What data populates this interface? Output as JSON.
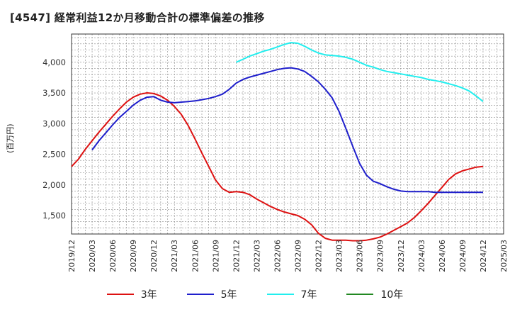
{
  "chart_data": {
    "type": "line",
    "title": "[4547]  経常利益12か月移動合計の標準偏差の推移",
    "ylabel": "(百万円)",
    "xlabel": "",
    "ylim": [
      1200,
      4460
    ],
    "yticks": [
      1500,
      2000,
      2500,
      3000,
      3500,
      4000
    ],
    "ytick_labels": [
      "1,500",
      "2,000",
      "2,500",
      "3,000",
      "3,500",
      "4,000"
    ],
    "x_tick_labels": [
      "2019/12",
      "2020/03",
      "2020/06",
      "2020/09",
      "2020/12",
      "2021/03",
      "2021/06",
      "2021/09",
      "2021/12",
      "2022/03",
      "2022/06",
      "2022/09",
      "2022/12",
      "2023/03",
      "2023/06",
      "2023/09",
      "2023/12",
      "2024/03",
      "2024/06",
      "2024/09",
      "2024/12",
      "2025/03"
    ],
    "grid": true,
    "legend_position": "bottom",
    "series": [
      {
        "name": "3年",
        "color": "#dd1111",
        "x": [
          "2019/12",
          "2020/01",
          "2020/02",
          "2020/03",
          "2020/04",
          "2020/05",
          "2020/06",
          "2020/07",
          "2020/08",
          "2020/09",
          "2020/10",
          "2020/11",
          "2020/12",
          "2021/01",
          "2021/02",
          "2021/03",
          "2021/04",
          "2021/05",
          "2021/06",
          "2021/07",
          "2021/08",
          "2021/09",
          "2021/10",
          "2021/11",
          "2021/12",
          "2022/01",
          "2022/02",
          "2022/03",
          "2022/04",
          "2022/05",
          "2022/06",
          "2022/07",
          "2022/08",
          "2022/09",
          "2022/10",
          "2022/11",
          "2022/12",
          "2023/01",
          "2023/02",
          "2023/03",
          "2023/04",
          "2023/05",
          "2023/06",
          "2023/07",
          "2023/08",
          "2023/09",
          "2023/10",
          "2023/11",
          "2023/12",
          "2024/01",
          "2024/02",
          "2024/03",
          "2024/04",
          "2024/05",
          "2024/06",
          "2024/07",
          "2024/08",
          "2024/09",
          "2024/10",
          "2024/11",
          "2024/12"
        ],
        "values": [
          2300,
          2420,
          2580,
          2720,
          2860,
          2990,
          3120,
          3240,
          3350,
          3430,
          3480,
          3500,
          3490,
          3450,
          3380,
          3280,
          3150,
          2970,
          2750,
          2520,
          2300,
          2080,
          1940,
          1880,
          1890,
          1880,
          1840,
          1770,
          1710,
          1650,
          1600,
          1560,
          1530,
          1500,
          1440,
          1350,
          1210,
          1130,
          1100,
          1100,
          1100,
          1090,
          1090,
          1100,
          1120,
          1150,
          1200,
          1260,
          1320,
          1380,
          1470,
          1580,
          1700,
          1830,
          1960,
          2090,
          2180,
          2230,
          2260,
          2290,
          2300
        ]
      },
      {
        "name": "5年",
        "color": "#1f1fcc",
        "x": [
          "2020/03",
          "2020/04",
          "2020/05",
          "2020/06",
          "2020/07",
          "2020/08",
          "2020/09",
          "2020/10",
          "2020/11",
          "2020/12",
          "2021/01",
          "2021/02",
          "2021/03",
          "2021/04",
          "2021/05",
          "2021/06",
          "2021/07",
          "2021/08",
          "2021/09",
          "2021/10",
          "2021/11",
          "2021/12",
          "2022/01",
          "2022/02",
          "2022/03",
          "2022/04",
          "2022/05",
          "2022/06",
          "2022/07",
          "2022/08",
          "2022/09",
          "2022/10",
          "2022/11",
          "2022/12",
          "2023/01",
          "2023/02",
          "2023/03",
          "2023/04",
          "2023/05",
          "2023/06",
          "2023/07",
          "2023/08",
          "2023/09",
          "2023/10",
          "2023/11",
          "2023/12",
          "2024/01",
          "2024/02",
          "2024/03",
          "2024/04",
          "2024/05",
          "2024/06",
          "2024/07",
          "2024/08",
          "2024/09",
          "2024/10",
          "2024/11",
          "2024/12"
        ],
        "values": [
          2570,
          2720,
          2850,
          2980,
          3100,
          3200,
          3300,
          3380,
          3430,
          3440,
          3380,
          3350,
          3340,
          3350,
          3360,
          3370,
          3390,
          3410,
          3440,
          3480,
          3560,
          3660,
          3720,
          3760,
          3790,
          3820,
          3850,
          3880,
          3900,
          3910,
          3890,
          3850,
          3770,
          3680,
          3560,
          3420,
          3200,
          2920,
          2630,
          2350,
          2160,
          2060,
          2020,
          1970,
          1930,
          1900,
          1890,
          1890,
          1890,
          1890,
          1880,
          1880,
          1880,
          1880,
          1880,
          1880,
          1880,
          1880
        ]
      },
      {
        "name": "7年",
        "color": "#22eeee",
        "x": [
          "2021/12",
          "2022/01",
          "2022/02",
          "2022/03",
          "2022/04",
          "2022/05",
          "2022/06",
          "2022/07",
          "2022/08",
          "2022/09",
          "2022/10",
          "2022/11",
          "2022/12",
          "2023/01",
          "2023/02",
          "2023/03",
          "2023/04",
          "2023/05",
          "2023/06",
          "2023/07",
          "2023/08",
          "2023/09",
          "2023/10",
          "2023/11",
          "2023/12",
          "2024/01",
          "2024/02",
          "2024/03",
          "2024/04",
          "2024/05",
          "2024/06",
          "2024/07",
          "2024/08",
          "2024/09",
          "2024/10",
          "2024/11",
          "2024/12"
        ],
        "values": [
          4000,
          4050,
          4100,
          4140,
          4180,
          4210,
          4250,
          4290,
          4320,
          4310,
          4260,
          4200,
          4150,
          4120,
          4110,
          4100,
          4080,
          4050,
          4000,
          3950,
          3920,
          3880,
          3850,
          3830,
          3810,
          3790,
          3770,
          3750,
          3720,
          3700,
          3680,
          3650,
          3620,
          3580,
          3530,
          3450,
          3360
        ]
      },
      {
        "name": "10年",
        "color": "#228822",
        "x": [],
        "values": []
      }
    ]
  }
}
